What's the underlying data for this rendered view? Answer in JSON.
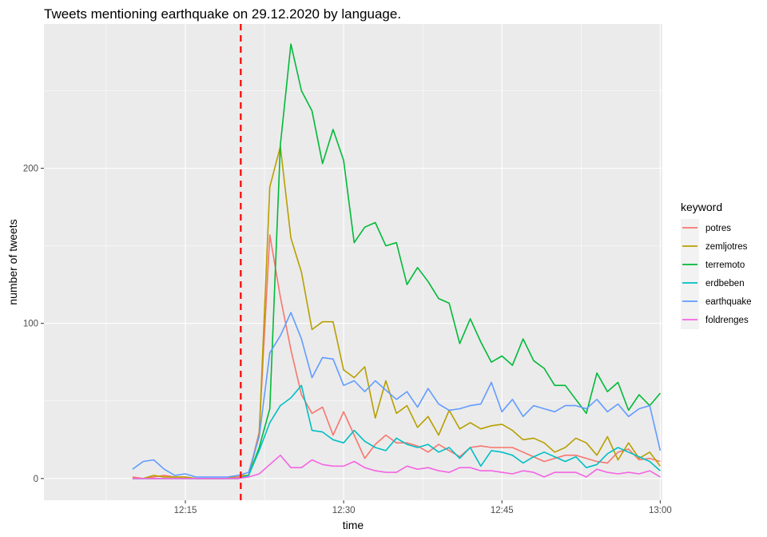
{
  "chart_data": {
    "type": "line",
    "title": "Tweets mentioning earthquake on 29.12.2020 by language.",
    "xlabel": "time",
    "ylabel": "number of tweets",
    "x_unit": "minutes after 12:00",
    "xlim": [
      8,
      301
    ],
    "ylim": [
      -14,
      293
    ],
    "x_ticks": [
      {
        "value": 15,
        "label": "12:15"
      },
      {
        "value": 30,
        "label": "12:30"
      },
      {
        "value": 45,
        "label": "12:45"
      },
      {
        "value": 60,
        "label": "13:00"
      }
    ],
    "y_ticks": [
      {
        "value": 0,
        "label": "0"
      },
      {
        "value": 100,
        "label": "100"
      },
      {
        "value": 200,
        "label": "200"
      }
    ],
    "grid": true,
    "background": "#ebebeb",
    "vline": {
      "x": 20.25,
      "color": "#ff0000",
      "style": "dashed"
    },
    "legend": {
      "title": "keyword",
      "position": "right"
    },
    "x": [
      10,
      11,
      12,
      13,
      14,
      15,
      16,
      17,
      18,
      19,
      20,
      21,
      22,
      23,
      24,
      25,
      26,
      27,
      28,
      29,
      30,
      31,
      32,
      33,
      34,
      35,
      36,
      37,
      38,
      39,
      40,
      41,
      42,
      43,
      44,
      45,
      46,
      47,
      48,
      49,
      50,
      51,
      52,
      53,
      54,
      55,
      56,
      57,
      58,
      59,
      60
    ],
    "series": [
      {
        "name": "potres",
        "color": "#f8766d",
        "values": [
          1,
          0,
          1,
          2,
          1,
          1,
          0,
          0,
          0,
          0,
          1,
          2,
          30,
          157,
          117,
          83,
          54,
          42,
          46,
          28,
          43,
          28,
          13,
          22,
          28,
          23,
          23,
          21,
          17,
          22,
          18,
          14,
          20,
          21,
          20,
          20,
          20,
          17,
          14,
          11,
          13,
          15,
          15,
          13,
          11,
          10,
          17,
          19,
          12,
          13,
          11
        ]
      },
      {
        "name": "zemljotres",
        "color": "#b79f00",
        "values": [
          0,
          0,
          2,
          1,
          1,
          1,
          0,
          0,
          0,
          0,
          2,
          2,
          28,
          188,
          214,
          155,
          133,
          96,
          101,
          101,
          70,
          65,
          72,
          39,
          63,
          42,
          47,
          33,
          40,
          28,
          44,
          32,
          36,
          32,
          34,
          35,
          31,
          25,
          26,
          23,
          17,
          20,
          26,
          23,
          15,
          27,
          12,
          23,
          13,
          17,
          8
        ]
      },
      {
        "name": "terremoto",
        "color": "#00ba38",
        "values": [
          0,
          0,
          0,
          0,
          0,
          0,
          0,
          0,
          0,
          0,
          0,
          2,
          20,
          45,
          215,
          280,
          250,
          237,
          203,
          225,
          205,
          152,
          162,
          165,
          150,
          152,
          125,
          136,
          127,
          116,
          113,
          87,
          103,
          88,
          75,
          79,
          73,
          90,
          76,
          71,
          60,
          60,
          51,
          42,
          68,
          56,
          62,
          44,
          54,
          47,
          55
        ]
      },
      {
        "name": "erdbeben",
        "color": "#00bfc4",
        "values": [
          0,
          0,
          0,
          0,
          0,
          0,
          0,
          0,
          0,
          0,
          0,
          2,
          18,
          36,
          47,
          52,
          60,
          31,
          30,
          25,
          23,
          31,
          24,
          20,
          18,
          26,
          22,
          20,
          22,
          17,
          20,
          13,
          20,
          8,
          18,
          17,
          15,
          10,
          14,
          17,
          14,
          11,
          14,
          7,
          9,
          16,
          20,
          17,
          14,
          11,
          5
        ]
      },
      {
        "name": "earthquake",
        "color": "#619cff",
        "values": [
          6,
          11,
          12,
          6,
          2,
          3,
          1,
          1,
          1,
          1,
          2,
          4,
          27,
          81,
          92,
          107,
          90,
          65,
          78,
          77,
          60,
          63,
          56,
          63,
          57,
          51,
          56,
          46,
          58,
          48,
          44,
          45,
          47,
          48,
          62,
          43,
          51,
          40,
          47,
          45,
          43,
          47,
          47,
          45,
          51,
          43,
          48,
          40,
          45,
          47,
          18
        ]
      },
      {
        "name": "foldrenges",
        "color": "#f564e3",
        "values": [
          0,
          0,
          0,
          0,
          0,
          0,
          0,
          0,
          0,
          0,
          0,
          1,
          3,
          9,
          15,
          7,
          7,
          12,
          9,
          8,
          8,
          11,
          7,
          5,
          4,
          4,
          8,
          6,
          7,
          5,
          4,
          7,
          7,
          5,
          5,
          4,
          3,
          5,
          4,
          1,
          4,
          4,
          4,
          1,
          6,
          4,
          3,
          4,
          3,
          5,
          1
        ]
      }
    ]
  }
}
